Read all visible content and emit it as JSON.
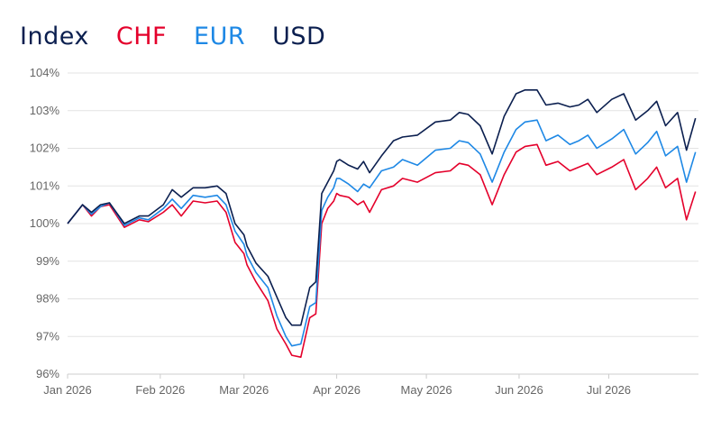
{
  "legend": {
    "title": "Index",
    "items": [
      {
        "label": "CHF",
        "color": "#e4002b"
      },
      {
        "label": "EUR",
        "color": "#1e88e5"
      },
      {
        "label": "USD",
        "color": "#0b1f4f"
      }
    ],
    "title_color": "#0b1f4f"
  },
  "chart_data": {
    "type": "line",
    "title": "",
    "xlabel": "",
    "ylabel": "",
    "ylim": [
      96,
      104
    ],
    "yticks": [
      "96%",
      "97%",
      "98%",
      "99%",
      "100%",
      "101%",
      "102%",
      "103%",
      "104%"
    ],
    "xticks": [
      "Jan 2026",
      "Feb 2026",
      "Mar 2026",
      "Apr 2026",
      "May 2026",
      "Jun 2026",
      "Jul 2026"
    ],
    "xlim": [
      "2026-01-01",
      "2026-07-31"
    ],
    "grid": true,
    "legend_position": "top-left",
    "x": [
      "2026-01-01",
      "2026-01-06",
      "2026-01-09",
      "2026-01-12",
      "2026-01-15",
      "2026-01-20",
      "2026-01-25",
      "2026-01-28",
      "2026-02-02",
      "2026-02-05",
      "2026-02-08",
      "2026-02-12",
      "2026-02-16",
      "2026-02-20",
      "2026-02-23",
      "2026-02-26",
      "2026-03-01",
      "2026-03-02",
      "2026-03-05",
      "2026-03-09",
      "2026-03-12",
      "2026-03-15",
      "2026-03-17",
      "2026-03-20",
      "2026-03-23",
      "2026-03-25",
      "2026-03-27",
      "2026-03-29",
      "2026-03-31",
      "2026-04-01",
      "2026-04-02",
      "2026-04-05",
      "2026-04-08",
      "2026-04-10",
      "2026-04-12",
      "2026-04-16",
      "2026-04-20",
      "2026-04-23",
      "2026-04-28",
      "2026-05-04",
      "2026-05-09",
      "2026-05-12",
      "2026-05-15",
      "2026-05-19",
      "2026-05-23",
      "2026-05-27",
      "2026-05-31",
      "2026-06-03",
      "2026-06-07",
      "2026-06-10",
      "2026-06-14",
      "2026-06-18",
      "2026-06-21",
      "2026-06-24",
      "2026-06-27",
      "2026-07-02",
      "2026-07-06",
      "2026-07-10",
      "2026-07-14",
      "2026-07-17",
      "2026-07-20",
      "2026-07-24",
      "2026-07-27",
      "2026-07-30"
    ],
    "series": [
      {
        "name": "CHF",
        "color": "#e4002b",
        "values": [
          100.0,
          100.5,
          100.2,
          100.45,
          100.5,
          99.9,
          100.1,
          100.05,
          100.3,
          100.5,
          100.2,
          100.6,
          100.55,
          100.6,
          100.3,
          99.5,
          99.2,
          98.9,
          98.45,
          97.95,
          97.2,
          96.8,
          96.5,
          96.45,
          97.5,
          97.6,
          100.0,
          100.4,
          100.6,
          100.8,
          100.75,
          100.7,
          100.5,
          100.6,
          100.3,
          100.9,
          101.0,
          101.2,
          101.1,
          101.35,
          101.4,
          101.6,
          101.55,
          101.3,
          100.5,
          101.3,
          101.9,
          102.05,
          102.1,
          101.55,
          101.65,
          101.4,
          101.5,
          101.6,
          101.3,
          101.5,
          101.7,
          100.9,
          101.2,
          101.5,
          100.95,
          101.2,
          100.1,
          100.85
        ]
      },
      {
        "name": "EUR",
        "color": "#1e88e5",
        "values": [
          100.0,
          100.5,
          100.25,
          100.45,
          100.55,
          99.95,
          100.15,
          100.1,
          100.4,
          100.65,
          100.4,
          100.75,
          100.7,
          100.75,
          100.5,
          99.8,
          99.45,
          99.15,
          98.7,
          98.3,
          97.55,
          97.0,
          96.75,
          96.8,
          97.8,
          97.9,
          100.35,
          100.7,
          100.95,
          101.2,
          101.2,
          101.05,
          100.85,
          101.05,
          100.95,
          101.4,
          101.5,
          101.7,
          101.55,
          101.95,
          102.0,
          102.2,
          102.15,
          101.85,
          101.1,
          101.9,
          102.5,
          102.7,
          102.75,
          102.2,
          102.35,
          102.1,
          102.2,
          102.35,
          102.0,
          102.25,
          102.5,
          101.85,
          102.15,
          102.45,
          101.8,
          102.05,
          101.1,
          101.9
        ]
      },
      {
        "name": "USD",
        "color": "#0b1f4f",
        "values": [
          100.0,
          100.5,
          100.3,
          100.5,
          100.55,
          100.0,
          100.2,
          100.2,
          100.5,
          100.9,
          100.7,
          100.95,
          100.95,
          101.0,
          100.8,
          100.0,
          99.7,
          99.4,
          98.95,
          98.6,
          98.05,
          97.5,
          97.3,
          97.3,
          98.3,
          98.45,
          100.8,
          101.1,
          101.4,
          101.65,
          101.7,
          101.55,
          101.45,
          101.65,
          101.35,
          101.8,
          102.2,
          102.3,
          102.35,
          102.7,
          102.75,
          102.95,
          102.9,
          102.6,
          101.85,
          102.85,
          103.45,
          103.55,
          103.55,
          103.15,
          103.2,
          103.1,
          103.15,
          103.3,
          102.95,
          103.3,
          103.45,
          102.75,
          103.0,
          103.25,
          102.6,
          102.95,
          101.95,
          102.8
        ]
      }
    ]
  }
}
